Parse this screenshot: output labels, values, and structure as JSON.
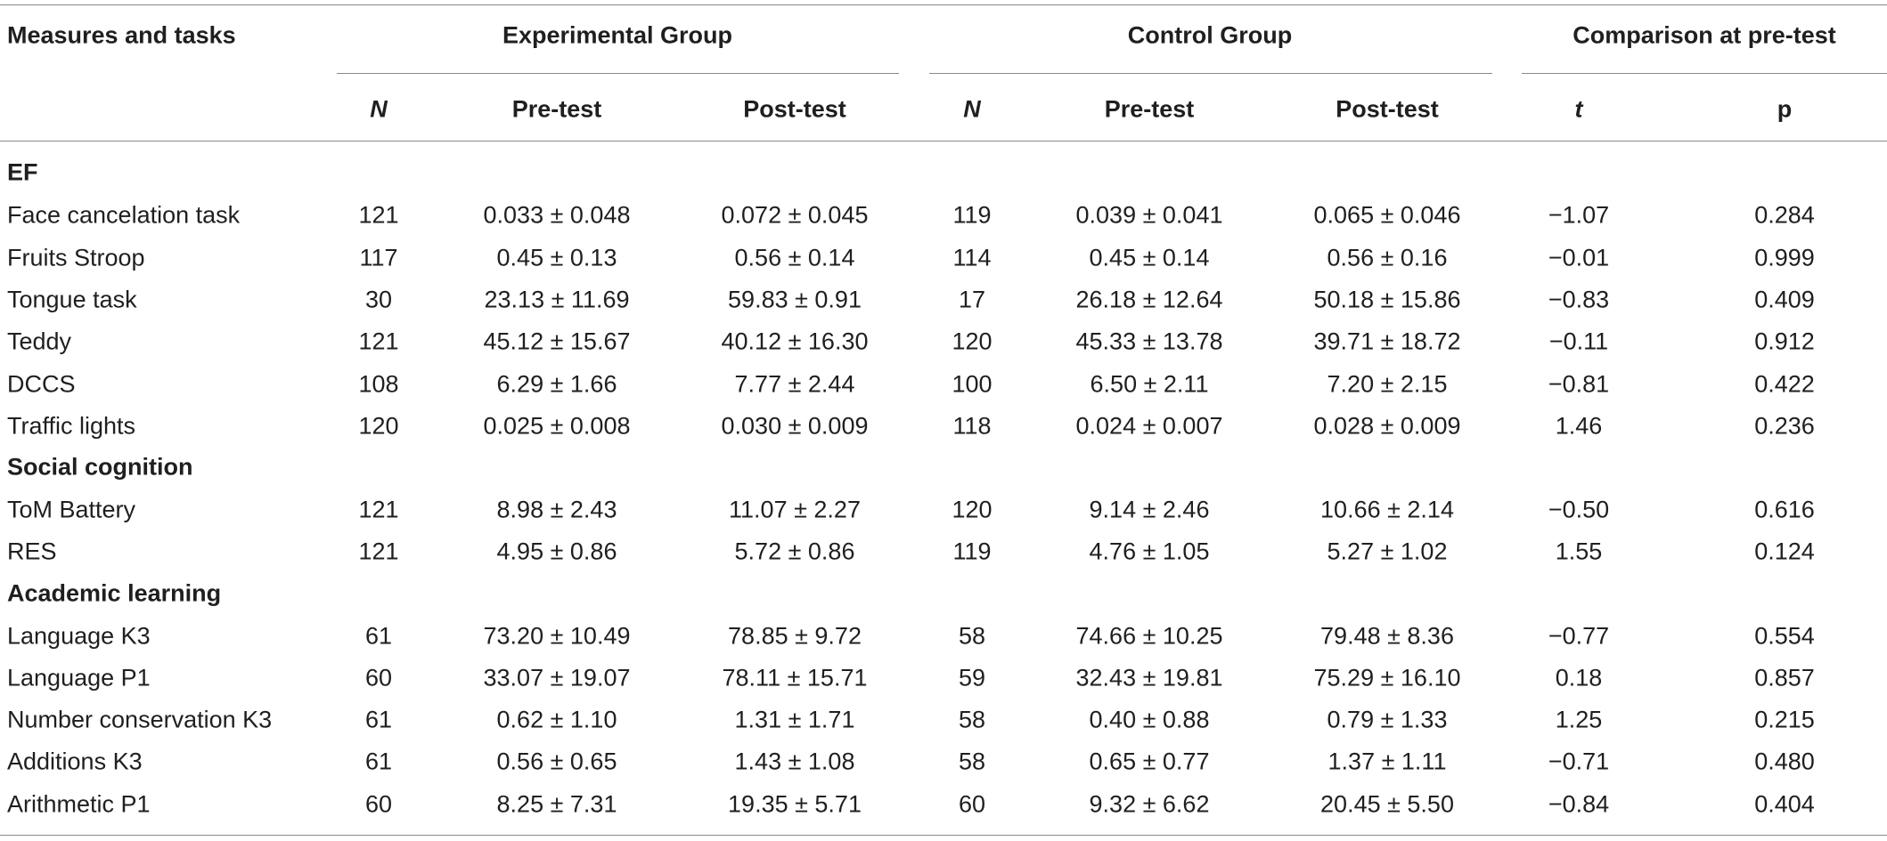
{
  "header": {
    "measures": "Measures and tasks",
    "experimental_group": "Experimental Group",
    "control_group": "Control Group",
    "comparison": "Comparison at pre-test"
  },
  "subheader": {
    "n_exp": "N",
    "pre_exp": "Pre-test",
    "post_exp": "Post-test",
    "n_ctrl": "N",
    "pre_ctrl": "Pre-test",
    "post_ctrl": "Post-test",
    "t": "t",
    "p": "p"
  },
  "sections": [
    {
      "title": "EF",
      "rows": [
        {
          "task": "Face cancelation task",
          "n_exp": "121",
          "pre_exp": "0.033 ± 0.048",
          "post_exp": "0.072 ± 0.045",
          "n_ctrl": "119",
          "pre_ctrl": "0.039 ± 0.041",
          "post_ctrl": "0.065 ± 0.046",
          "t": "−1.07",
          "p": "0.284"
        },
        {
          "task": "Fruits Stroop",
          "n_exp": "117",
          "pre_exp": "0.45 ± 0.13",
          "post_exp": "0.56 ± 0.14",
          "n_ctrl": "114",
          "pre_ctrl": "0.45 ± 0.14",
          "post_ctrl": "0.56 ± 0.16",
          "t": "−0.01",
          "p": "0.999"
        },
        {
          "task": "Tongue task",
          "n_exp": "30",
          "pre_exp": "23.13 ± 11.69",
          "post_exp": "59.83 ± 0.91",
          "n_ctrl": "17",
          "pre_ctrl": "26.18 ± 12.64",
          "post_ctrl": "50.18 ± 15.86",
          "t": "−0.83",
          "p": "0.409"
        },
        {
          "task": "Teddy",
          "n_exp": "121",
          "pre_exp": "45.12 ± 15.67",
          "post_exp": "40.12 ± 16.30",
          "n_ctrl": "120",
          "pre_ctrl": "45.33 ± 13.78",
          "post_ctrl": "39.71 ± 18.72",
          "t": "−0.11",
          "p": "0.912"
        },
        {
          "task": "DCCS",
          "n_exp": "108",
          "pre_exp": "6.29 ± 1.66",
          "post_exp": "7.77 ± 2.44",
          "n_ctrl": "100",
          "pre_ctrl": "6.50 ± 2.11",
          "post_ctrl": "7.20 ± 2.15",
          "t": "−0.81",
          "p": "0.422"
        },
        {
          "task": "Traffic lights",
          "n_exp": "120",
          "pre_exp": "0.025 ± 0.008",
          "post_exp": "0.030 ± 0.009",
          "n_ctrl": "118",
          "pre_ctrl": "0.024 ± 0.007",
          "post_ctrl": "0.028 ± 0.009",
          "t": "1.46",
          "p": "0.236"
        }
      ]
    },
    {
      "title": "Social cognition",
      "rows": [
        {
          "task": "ToM Battery",
          "n_exp": "121",
          "pre_exp": "8.98 ± 2.43",
          "post_exp": "11.07 ± 2.27",
          "n_ctrl": "120",
          "pre_ctrl": "9.14 ± 2.46",
          "post_ctrl": "10.66 ± 2.14",
          "t": "−0.50",
          "p": "0.616"
        },
        {
          "task": "RES",
          "n_exp": "121",
          "pre_exp": "4.95 ± 0.86",
          "post_exp": "5.72 ± 0.86",
          "n_ctrl": "119",
          "pre_ctrl": "4.76 ± 1.05",
          "post_ctrl": "5.27 ± 1.02",
          "t": "1.55",
          "p": "0.124"
        }
      ]
    },
    {
      "title": "Academic learning",
      "rows": [
        {
          "task": "Language K3",
          "n_exp": "61",
          "pre_exp": "73.20 ± 10.49",
          "post_exp": "78.85 ± 9.72",
          "n_ctrl": "58",
          "pre_ctrl": "74.66 ± 10.25",
          "post_ctrl": "79.48 ± 8.36",
          "t": "−0.77",
          "p": "0.554"
        },
        {
          "task": "Language P1",
          "n_exp": "60",
          "pre_exp": "33.07 ± 19.07",
          "post_exp": "78.11 ± 15.71",
          "n_ctrl": "59",
          "pre_ctrl": "32.43 ± 19.81",
          "post_ctrl": "75.29 ± 16.10",
          "t": "0.18",
          "p": "0.857"
        },
        {
          "task": "Number conservation K3",
          "n_exp": "61",
          "pre_exp": "0.62 ± 1.10",
          "post_exp": "1.31 ± 1.71",
          "n_ctrl": "58",
          "pre_ctrl": "0.40 ± 0.88",
          "post_ctrl": "0.79 ± 1.33",
          "t": "1.25",
          "p": "0.215"
        },
        {
          "task": "Additions K3",
          "n_exp": "61",
          "pre_exp": "0.56 ± 0.65",
          "post_exp": "1.43 ± 1.08",
          "n_ctrl": "58",
          "pre_ctrl": "0.65 ± 0.77",
          "post_ctrl": "1.37 ± 1.11",
          "t": "−0.71",
          "p": "0.480"
        },
        {
          "task": "Arithmetic P1",
          "n_exp": "60",
          "pre_exp": "8.25 ± 7.31",
          "post_exp": "19.35 ± 5.71",
          "n_ctrl": "60",
          "pre_ctrl": "9.32 ± 6.62",
          "post_ctrl": "20.45 ± 5.50",
          "t": "−0.84",
          "p": "0.404"
        }
      ]
    }
  ]
}
